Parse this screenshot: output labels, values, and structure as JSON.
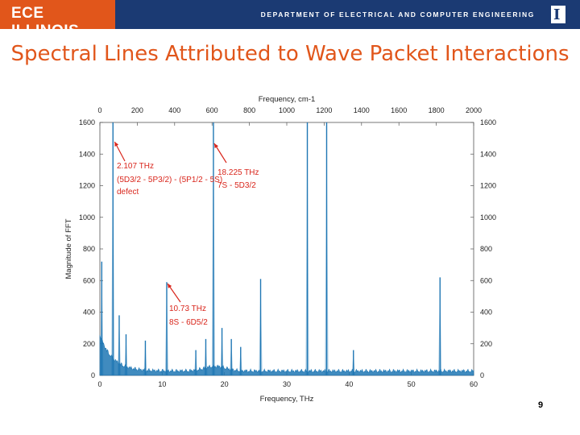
{
  "header": {
    "logo": "ECE ILLINOIS",
    "department": "DEPARTMENT OF ELECTRICAL AND COMPUTER ENGINEERING",
    "block_letter": "I"
  },
  "slide": {
    "title": "Spectral Lines Attributed to Wave Packet Interactions",
    "number": "9"
  },
  "colors": {
    "header_bg": "#1b3a73",
    "accent": "#e1561b",
    "series": "#1f77b4",
    "annotation": "#d9261c"
  },
  "chart_data": {
    "type": "line",
    "title": "",
    "xlabel": "Frequency, THz",
    "ylabel": "Magnitude of FFT",
    "x2label": "Frequency, cm-1",
    "xlim": [
      0,
      60
    ],
    "ylim": [
      0,
      1600
    ],
    "x2lim": [
      0,
      2000
    ],
    "xticks": [
      "0",
      "10",
      "20",
      "30",
      "40",
      "50",
      "60"
    ],
    "yticks": [
      "0",
      "200",
      "400",
      "600",
      "800",
      "1000",
      "1200",
      "1400",
      "1600"
    ],
    "x2ticks": [
      "0",
      "200",
      "400",
      "600",
      "800",
      "1000",
      "1200",
      "1400",
      "1600",
      "1800",
      "2000"
    ],
    "grid": false,
    "series": [
      {
        "name": "",
        "peaks": [
          {
            "x": 0.3,
            "y": 720
          },
          {
            "x": 2.1,
            "y": 1600
          },
          {
            "x": 3.1,
            "y": 380
          },
          {
            "x": 4.2,
            "y": 260
          },
          {
            "x": 7.3,
            "y": 220
          },
          {
            "x": 10.73,
            "y": 590
          },
          {
            "x": 15.4,
            "y": 160
          },
          {
            "x": 17.0,
            "y": 230
          },
          {
            "x": 18.225,
            "y": 1600
          },
          {
            "x": 19.6,
            "y": 300
          },
          {
            "x": 21.1,
            "y": 230
          },
          {
            "x": 22.6,
            "y": 180
          },
          {
            "x": 25.8,
            "y": 610
          },
          {
            "x": 33.3,
            "y": 1600
          },
          {
            "x": 36.4,
            "y": 1600
          },
          {
            "x": 40.7,
            "y": 160
          },
          {
            "x": 54.6,
            "y": 620
          }
        ]
      }
    ],
    "annotations": [
      {
        "lines": [
          "2.107 THz",
          "(5D3/2 - 5P3/2) - (5P1/2 - 5S)",
          "defect"
        ],
        "target_x": 2.107
      },
      {
        "lines": [
          "18.225 THz",
          "7S - 5D3/2"
        ],
        "target_x": 18.225
      },
      {
        "lines": [
          "10.73 THz",
          "8S - 6D5/2"
        ],
        "target_x": 10.73
      }
    ]
  }
}
